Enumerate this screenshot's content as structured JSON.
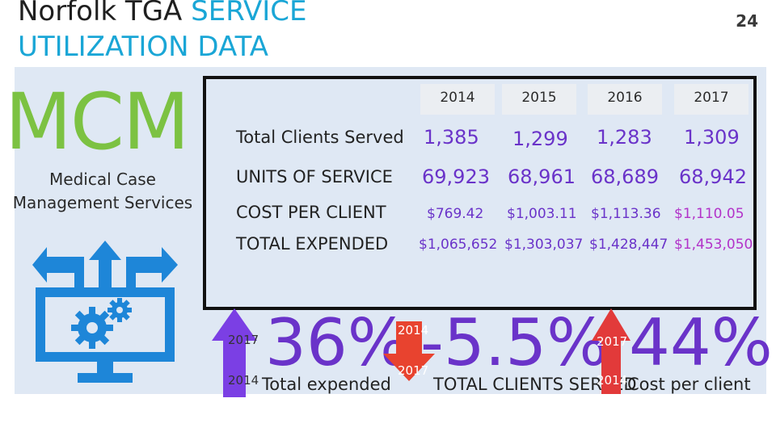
{
  "header": {
    "title_line1_black": "Norfolk TGA",
    "title_line1_blue": "SERVICE",
    "title_line2": "UTILIZATION DATA",
    "page_number": "24"
  },
  "service": {
    "acronym": "MCM",
    "name_line1": "Medical Case",
    "name_line2": "Management Services"
  },
  "table": {
    "years": [
      "2014",
      "2015",
      "2016",
      "2017"
    ],
    "rows": [
      {
        "label": "Total Clients Served",
        "values": [
          "1,385",
          "1,299",
          "1,283",
          "1,309"
        ]
      },
      {
        "label": "UNITS OF SERVICE",
        "values": [
          "69,923",
          "68,961",
          "68,689",
          "68,942"
        ]
      },
      {
        "label": "COST PER CLIENT",
        "values": [
          "$769.42",
          "$1,003.11",
          "$1,113.36",
          "$1,110.05"
        ]
      },
      {
        "label": "TOTAL EXPENDED",
        "values": [
          "$1,065,652",
          "$1,303,037",
          "$1,428,447",
          "$1,453,050"
        ]
      }
    ]
  },
  "stats": [
    {
      "value": "36%",
      "caption": "Total expended",
      "direction": "up",
      "top_year": "2017",
      "bottom_year": "2014",
      "arrow_color": "#7b3fe4"
    },
    {
      "value": "-5.5%",
      "caption": "TOTAL CLIENTS SERVED",
      "direction": "down",
      "top_year": "2014",
      "bottom_year": "2017",
      "arrow_color": "#e8432f"
    },
    {
      "value": "44%",
      "caption": "Cost per client",
      "direction": "up",
      "top_year": "2017",
      "bottom_year": "2014",
      "arrow_color": "#e23a3a"
    }
  ],
  "colors": {
    "title_accent": "#1aa6d6",
    "mcm_green": "#7cc242",
    "panel_bg": "#dfe8f4",
    "purple": "#6a33c9",
    "icon_blue": "#1e86d8"
  },
  "icons": [
    "monitor-gears-icon",
    "up-arrow-icon",
    "down-arrow-icon"
  ]
}
